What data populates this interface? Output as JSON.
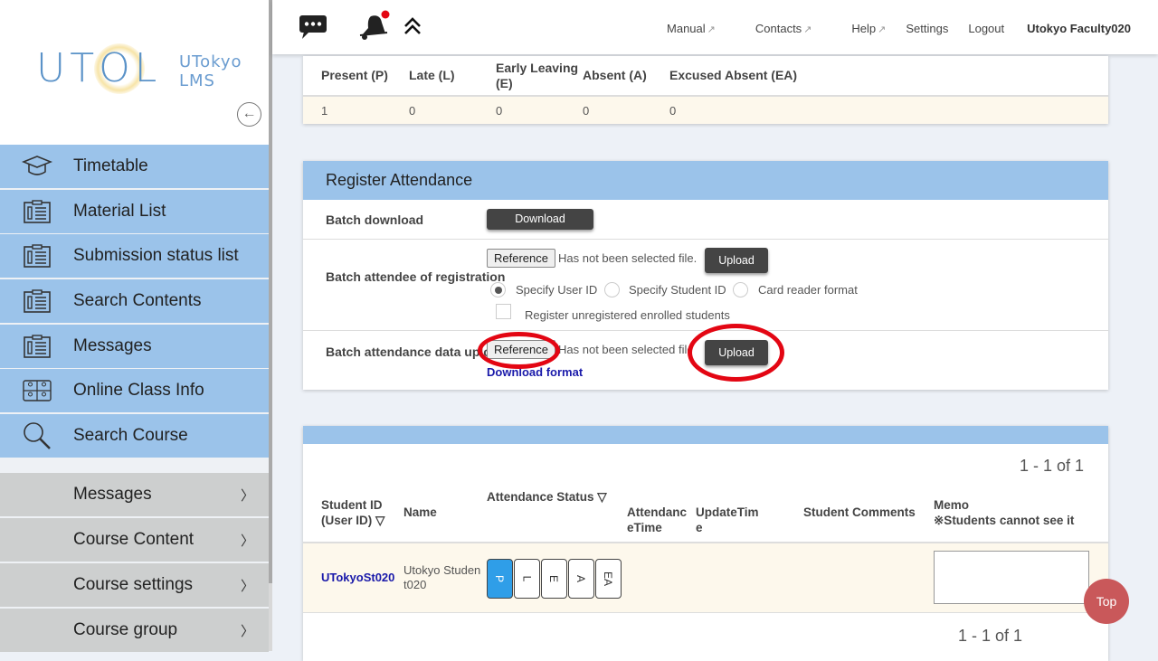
{
  "logo": {
    "main": "UTOL",
    "sub1": "UTokyo",
    "sub2": "LMS"
  },
  "sidebar": {
    "collapse_icon": "arrow-left-circle",
    "items": [
      {
        "label": "Timetable",
        "icon": "graduation-cap"
      },
      {
        "label": "Material List",
        "icon": "clipboard"
      },
      {
        "label": "Submission status list",
        "icon": "clipboard"
      },
      {
        "label": "Search Contents",
        "icon": "clipboard"
      },
      {
        "label": "Messages",
        "icon": "clipboard"
      },
      {
        "label": "Online Class Info",
        "icon": "video-grid"
      },
      {
        "label": "Search Course",
        "icon": "magnifier"
      }
    ],
    "sub_items": [
      {
        "label": "Messages",
        "chevron": "〉"
      },
      {
        "label": "Course Content",
        "chevron": "〉"
      },
      {
        "label": "Course settings",
        "chevron": "〉"
      },
      {
        "label": "Course group",
        "chevron": "〉"
      }
    ]
  },
  "header": {
    "links": {
      "manual": "Manual",
      "contacts": "Contacts",
      "help": "Help",
      "settings": "Settings",
      "logout": "Logout",
      "user": "Utokyo Faculty020"
    },
    "external_icon": "↗",
    "notification_color": "#e30613"
  },
  "summary": {
    "headers": [
      "Present (P)",
      "Late (L)",
      "Early Leaving (E)",
      "Absent (A)",
      "Excused Absent (EA)"
    ],
    "values": [
      "1",
      "0",
      "0",
      "0",
      "0"
    ]
  },
  "register": {
    "title": "Register Attendance",
    "batch_download": {
      "label": "Batch download",
      "button": "Download"
    },
    "batch_registration": {
      "label": "Batch attendee of registration",
      "reference": "Reference",
      "no_file": "Has not been selected file.",
      "upload": "Upload",
      "radios": [
        {
          "label": "Specify User ID",
          "checked": true
        },
        {
          "label": "Specify Student ID",
          "checked": false
        },
        {
          "label": "Card reader format",
          "checked": false
        }
      ],
      "checkbox": {
        "label": "Register unregistered enrolled students",
        "checked": false
      }
    },
    "batch_upload": {
      "label": "Batch attendance data upload",
      "reference": "Reference",
      "no_file": "Has not been selected file.",
      "upload": "Upload",
      "download_format": "Download format"
    }
  },
  "students": {
    "pager_top": "1 - 1 of 1",
    "pager_bottom": "1 - 1 of 1",
    "headers": {
      "student_id": "Student ID (User ID) ▽",
      "name": "Name",
      "status": "Attendance Status ▽",
      "attendance_time": "AttendanceTime",
      "update_time": "UpdateTime",
      "comments": "Student Comments",
      "memo": "Memo",
      "memo_note": "※Students cannot see it"
    },
    "rows": [
      {
        "student_id": "UTokyoSt020",
        "name": "Utokyo Student020",
        "status_options": [
          "P",
          "L",
          "E",
          "A",
          "EA"
        ],
        "selected": "P",
        "memo": ""
      }
    ]
  },
  "top_button": "Top"
}
